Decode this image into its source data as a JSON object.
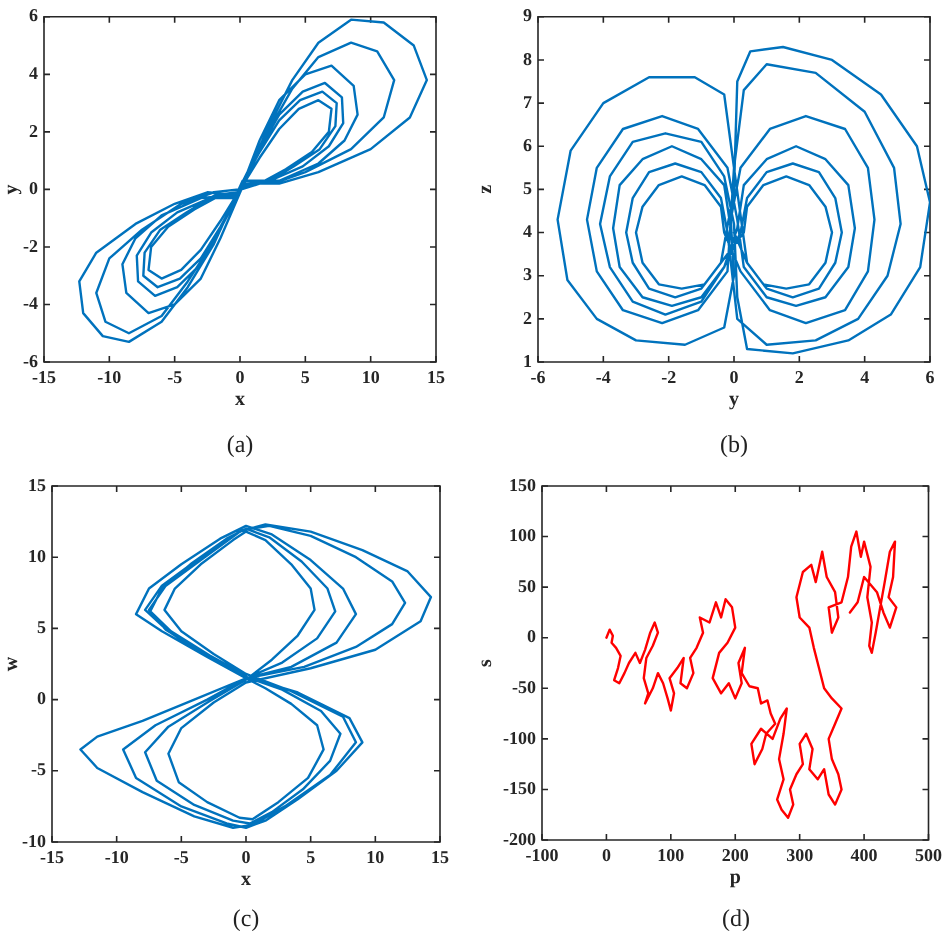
{
  "chart_data": [
    {
      "type": "line",
      "xlabel": "x",
      "ylabel": "y",
      "annotations": [
        "(a)"
      ],
      "color": "#0072bd",
      "grid": false,
      "legend": false,
      "marker": "none",
      "xlim": [
        -15,
        15
      ],
      "xticks": [
        -15,
        -10,
        -5,
        0,
        5,
        10,
        15
      ],
      "ylim": [
        -6,
        6
      ],
      "yticks": [
        -6,
        -4,
        -2,
        0,
        2,
        4,
        6
      ],
      "x": [
        0,
        1.5,
        3,
        4.8,
        6.5,
        7.8,
        7.9,
        6.8,
        4.8,
        2.3,
        0.2,
        -1.5,
        -3,
        -4.6,
        -6.3,
        -7.4,
        -7.3,
        -6.1,
        -4.1,
        -1.9,
        -0.2,
        2,
        4,
        6,
        8.5,
        10.5,
        11.8,
        11,
        8.5,
        5,
        2.5,
        0.3,
        -1.5,
        -3,
        -5,
        -7,
        -8.7,
        -9,
        -8,
        -6,
        -3,
        -0.3,
        1.5,
        3,
        4.6,
        6.3,
        7.4,
        7.3,
        6.1,
        4.1,
        1.9,
        0.1,
        -2,
        -4,
        -6,
        -8.5,
        -10.5,
        -12,
        -12.3,
        -11,
        -8,
        -5,
        -2.5,
        -0.1,
        1.5,
        3,
        5,
        7,
        8.7,
        9,
        8,
        6,
        3,
        0.2,
        -1.5,
        -3,
        -4.8,
        -6.5,
        -7.8,
        -7.9,
        -6.8,
        -4.8,
        -2.3,
        -0.2,
        2,
        4,
        6,
        8.5,
        11,
        13.3,
        14.3,
        13,
        10,
        6,
        3,
        0.4,
        -1.5,
        -3,
        -4.5,
        -6,
        -7,
        -6.8,
        -5.5,
        -3.5,
        -1.5,
        -0.4,
        1.5,
        3,
        4.5,
        6,
        7,
        6.8,
        5.5,
        3.5,
        1.5,
        0.1,
        -2,
        -4,
        -6,
        -8.5,
        -10.3,
        -11,
        -10,
        -7.5,
        -4.5,
        -2,
        -0.1
      ],
      "values": [
        0,
        1.4,
        2.6,
        3.4,
        3.7,
        3.2,
        2.3,
        1.5,
        0.8,
        0.3,
        0.1,
        -1.3,
        -2.4,
        -3.1,
        -3.4,
        -3,
        -2.2,
        -1.4,
        -0.8,
        -0.2,
        -0.1,
        1.9,
        3.5,
        4.6,
        5.1,
        4.8,
        3.8,
        2.5,
        1.4,
        0.6,
        0.2,
        0.2,
        -1.7,
        -3.1,
        -4,
        -4.3,
        -3.6,
        -2.6,
        -1.7,
        -0.9,
        -0.3,
        -0.2,
        1.3,
        2.4,
        3.1,
        3.4,
        3,
        2.2,
        1.4,
        0.8,
        0.2,
        0.2,
        -1.9,
        -3.4,
        -4.6,
        -5.3,
        -5.1,
        -4.3,
        -3.2,
        -2.2,
        -1.2,
        -0.5,
        -0.1,
        -0.2,
        1.7,
        3.1,
        4,
        4.3,
        3.6,
        2.6,
        1.7,
        0.9,
        0.3,
        0.3,
        -1.4,
        -2.6,
        -3.4,
        -3.7,
        -3.2,
        -2.3,
        -1.5,
        -0.8,
        -0.3,
        -0.3,
        2,
        3.8,
        5.1,
        5.9,
        5.8,
        5,
        3.8,
        2.5,
        1.4,
        0.6,
        0.2,
        0.3,
        -1.1,
        -2.1,
        -2.8,
        -3.1,
        -2.8,
        -2,
        -1.3,
        -0.7,
        -0.2,
        -0.3,
        1.1,
        2.1,
        2.8,
        3.1,
        2.8,
        2,
        1.3,
        0.7,
        0.2,
        0,
        -1.8,
        -3.2,
        -4.4,
        -5,
        -4.6,
        -3.6,
        -2.4,
        -1.4,
        -0.5,
        -0.1,
        0
      ]
    },
    {
      "type": "line",
      "xlabel": "y",
      "ylabel": "z",
      "annotations": [
        "(b)"
      ],
      "color": "#0072bd",
      "grid": false,
      "legend": false,
      "marker": "none",
      "xlim": [
        -6,
        6
      ],
      "xticks": [
        -6,
        -4,
        -2,
        0,
        2,
        4,
        6
      ],
      "ylim": [
        1,
        9
      ],
      "yticks": [
        1,
        2,
        3,
        4,
        5,
        6,
        7,
        8,
        9
      ],
      "x": [
        -0.1,
        -0.3,
        -1,
        -1.9,
        -2.8,
        -3.5,
        -3.7,
        -3.5,
        -2.8,
        -1.9,
        -1,
        -0.3,
        0.2,
        0.4,
        1,
        1.8,
        2.6,
        3.1,
        3.3,
        3.1,
        2.6,
        1.8,
        1,
        0.4,
        0,
        -0.3,
        -1.2,
        -2.6,
        -4,
        -5,
        -5.4,
        -5.1,
        -4.2,
        -3,
        -1.5,
        -0.3,
        0,
        -0.1,
        0.2,
        1.1,
        2.2,
        3.4,
        4.1,
        4.3,
        4.1,
        3.4,
        2.2,
        1.1,
        0.2,
        -0.3,
        -0.4,
        -0.9,
        -1.6,
        -2.3,
        -2.8,
        -3,
        -2.8,
        -2.3,
        -1.6,
        -0.9,
        -0.4,
        0,
        0.1,
        0.5,
        1.5,
        3,
        4.5,
        5.6,
        6,
        5.7,
        4.8,
        3.5,
        1.8,
        0.4,
        0.1,
        0,
        -0.3,
        -1,
        -2.1,
        -3.1,
        -3.8,
        -4.1,
        -3.8,
        -3.1,
        -2.1,
        -1,
        -0.3,
        0.1,
        0.3,
        1,
        1.9,
        2.8,
        3.5,
        3.7,
        3.5,
        2.8,
        1.9,
        1,
        0.3,
        0.1,
        -0.2,
        -1.1,
        -2.2,
        -3.4,
        -4.2,
        -4.5,
        -4.2,
        -3.4,
        -2.2,
        -1.1,
        -0.2,
        0,
        0.3,
        1,
        2.5,
        4,
        4.9,
        5.1,
        4.7,
        3.8,
        2.5,
        1,
        0.1,
        -0.2,
        -0.4,
        -1,
        -1.8,
        -2.6,
        -3.1,
        -3.3,
        -3.1,
        -2.6,
        -1.8,
        -1,
        -0.4,
        0.3,
        0.4,
        0.9,
        1.6,
        2.3,
        2.8,
        3,
        2.8,
        2.3,
        1.6,
        0.9,
        0.4,
        0
      ],
      "values": [
        4.1,
        5.1,
        5.7,
        6,
        5.7,
        5.1,
        4.1,
        3.2,
        2.5,
        2.3,
        2.5,
        3.2,
        4,
        4.8,
        5.4,
        5.6,
        5.4,
        4.8,
        4,
        3.3,
        2.7,
        2.5,
        2.7,
        3.3,
        5.5,
        7.2,
        7.6,
        7.6,
        7,
        5.9,
        4.3,
        2.9,
        2,
        1.5,
        1.4,
        1.8,
        3,
        4.3,
        5.5,
        6.4,
        6.7,
        6.4,
        5.5,
        4.3,
        3.1,
        2.2,
        1.9,
        2.2,
        3.1,
        4,
        4.6,
        5.1,
        5.3,
        5.1,
        4.6,
        4,
        3.3,
        2.8,
        2.7,
        2.8,
        3.3,
        5,
        7.5,
        8.2,
        8.3,
        8,
        7.2,
        6,
        4.7,
        3.2,
        2.1,
        1.5,
        1.2,
        1.3,
        2.5,
        4.2,
        5.3,
        6.1,
        6.3,
        6.1,
        5.3,
        4.2,
        3.2,
        2.4,
        2.1,
        2.4,
        3.2,
        4.1,
        5.1,
        5.7,
        6,
        5.7,
        5.1,
        4.1,
        3.2,
        2.5,
        2.3,
        2.5,
        3.2,
        4.3,
        5.5,
        6.4,
        6.7,
        6.4,
        5.5,
        4.3,
        3.1,
        2.2,
        1.9,
        2.2,
        3.1,
        5.5,
        7.3,
        7.9,
        7.7,
        6.8,
        5.5,
        4.2,
        3,
        2,
        1.5,
        1.4,
        2,
        4,
        4.8,
        5.4,
        5.6,
        5.4,
        4.8,
        4,
        3.3,
        2.7,
        2.5,
        2.7,
        3.3,
        4,
        4.6,
        5.1,
        5.3,
        5.1,
        4.6,
        4,
        3.3,
        2.8,
        2.7,
        2.8,
        3.3,
        4
      ]
    },
    {
      "type": "line",
      "xlabel": "x",
      "ylabel": "w",
      "annotations": [
        "(c)"
      ],
      "color": "#0072bd",
      "grid": false,
      "legend": false,
      "marker": "none",
      "xlim": [
        -15,
        15
      ],
      "xticks": [
        -15,
        -10,
        -5,
        0,
        5,
        10,
        15
      ],
      "ylim": [
        -10,
        15
      ],
      "yticks": [
        -10,
        -5,
        0,
        5,
        10,
        15
      ],
      "x": [
        0,
        -2.8,
        -5.8,
        -7.4,
        -6.5,
        -4.3,
        -1.5,
        0,
        1.8,
        4.3,
        6.3,
        6.9,
        5.5,
        2.8,
        0,
        -3,
        -7,
        -9.5,
        -8.5,
        -5,
        -1.5,
        0,
        1.5,
        4,
        7,
        9,
        8,
        4,
        0,
        -3,
        -6,
        -7.8,
        -6.5,
        -3.5,
        -0.5,
        1.5,
        5,
        9,
        12.5,
        14.3,
        13.5,
        10,
        5,
        0,
        -2.5,
        -5,
        -6,
        -5.2,
        -3,
        -0.5,
        0.5,
        2.5,
        4.8,
        6,
        5.5,
        3.5,
        1.5,
        0,
        -3,
        -6.5,
        -8.5,
        -7.5,
        -5,
        -2,
        0,
        2,
        5,
        7.5,
        8.5,
        7,
        3.5,
        0,
        -4,
        -8,
        -11.5,
        -12.8,
        -11.5,
        -8,
        -4,
        -1,
        0.5,
        3,
        6.5,
        8.5,
        7.5,
        3.5,
        0,
        -2.5,
        -5,
        -6.3,
        -5.5,
        -3.5,
        -1,
        0,
        1.5,
        3.5,
        5,
        5.3,
        4,
        2,
        0,
        -2.8,
        -6,
        -7.8,
        -6.9,
        -4,
        -1,
        0.3,
        2,
        4.4,
        6.5,
        7.3,
        5.8,
        2.8,
        0,
        -3,
        -6.2,
        -7.5,
        -6.2,
        -3.2,
        -0.3,
        1.8,
        5,
        8.5,
        11.3,
        12.3,
        11.3,
        8.5,
        4.5,
        0
      ],
      "values": [
        1.7,
        3.1,
        4.8,
        6.2,
        7.8,
        9.5,
        11.3,
        12,
        11.4,
        9.7,
        7.8,
        6.2,
        4.3,
        2.6,
        1.5,
        0,
        -1.8,
        -3.5,
        -5.5,
        -7.5,
        -8.7,
        -9,
        -8.5,
        -7,
        -5,
        -3,
        -1.3,
        0.5,
        1.6,
        3,
        4.8,
        6.3,
        8,
        10,
        11.8,
        12.3,
        11.8,
        10.5,
        9,
        7.2,
        5.5,
        3.5,
        2.2,
        1.2,
        -0.2,
        -2,
        -3.8,
        -5.8,
        -7.2,
        -8.3,
        -8.4,
        -7.2,
        -5.5,
        -3.5,
        -1.8,
        -0.3,
        0.8,
        1.5,
        3,
        4.8,
        6,
        7.8,
        9.5,
        11.3,
        12.2,
        11.6,
        9.8,
        7.8,
        6,
        4,
        2.3,
        1.5,
        0,
        -1.5,
        -2.6,
        -3.5,
        -4.8,
        -6.5,
        -8.2,
        -9,
        -8.8,
        -7.5,
        -5.3,
        -3,
        -1.2,
        0.6,
        1.8,
        3.2,
        4.8,
        6.3,
        7.8,
        9.5,
        11.2,
        11.8,
        11.2,
        9.5,
        7.8,
        6.3,
        4.5,
        2.8,
        1.4,
        -0.1,
        -1.9,
        -3.7,
        -5.7,
        -7.4,
        -8.5,
        -8.7,
        -7.9,
        -6.3,
        -4.3,
        -2.4,
        -0.8,
        0.7,
        1.6,
        3.1,
        4.9,
        6.3,
        8,
        10,
        11.9,
        12.2,
        11.5,
        10,
        8.3,
        6.8,
        5.3,
        3.7,
        2.3,
        1.5
      ]
    },
    {
      "type": "line",
      "xlabel": "p",
      "ylabel": "s",
      "annotations": [
        "(d)"
      ],
      "color": "#ff0000",
      "grid": false,
      "legend": false,
      "marker": "none",
      "xlim": [
        -100,
        500
      ],
      "xticks": [
        -100,
        0,
        100,
        200,
        300,
        400,
        500
      ],
      "ylim": [
        -200,
        150
      ],
      "yticks": [
        -200,
        -150,
        -100,
        -50,
        0,
        50,
        100,
        150
      ],
      "x": [
        0,
        5,
        10,
        8,
        15,
        22,
        18,
        12,
        20,
        28,
        35,
        45,
        52,
        60,
        68,
        75,
        80,
        72,
        62,
        58,
        65,
        60,
        72,
        80,
        88,
        95,
        100,
        105,
        98,
        110,
        120,
        115,
        125,
        135,
        130,
        140,
        150,
        145,
        160,
        170,
        178,
        185,
        195,
        200,
        188,
        175,
        165,
        178,
        190,
        200,
        210,
        205,
        215,
        210,
        222,
        235,
        240,
        250,
        255,
        262,
        248,
        242,
        230,
        225,
        240,
        258,
        270,
        280,
        275,
        268,
        275,
        265,
        272,
        282,
        290,
        285,
        295,
        305,
        300,
        310,
        320,
        315,
        328,
        338,
        345,
        355,
        365,
        360,
        350,
        345,
        355,
        365,
        350,
        338,
        330,
        322,
        315,
        300,
        295,
        305,
        318,
        325,
        335,
        342,
        355,
        360,
        350,
        345,
        365,
        375,
        380,
        388,
        395,
        400,
        410,
        405,
        412,
        408,
        412,
        418,
        425,
        432,
        440,
        448,
        445,
        438,
        450,
        440,
        430,
        420,
        400,
        390,
        378
      ],
      "values": [
        0,
        8,
        2,
        -5,
        -10,
        -18,
        -30,
        -42,
        -45,
        -35,
        -25,
        -15,
        -25,
        -12,
        5,
        15,
        5,
        -8,
        -20,
        -40,
        -55,
        -65,
        -50,
        -35,
        -45,
        -60,
        -72,
        -55,
        -40,
        -30,
        -20,
        -45,
        -50,
        -35,
        -20,
        -10,
        5,
        20,
        15,
        35,
        20,
        38,
        30,
        10,
        -5,
        -15,
        -40,
        -55,
        -45,
        -60,
        -45,
        -25,
        -10,
        -35,
        -48,
        -50,
        -65,
        -62,
        -75,
        -85,
        -95,
        -110,
        -125,
        -105,
        -90,
        -100,
        -80,
        -70,
        -95,
        -120,
        -140,
        -160,
        -170,
        -178,
        -165,
        -150,
        -135,
        -125,
        -105,
        -95,
        -110,
        -130,
        -140,
        -130,
        -155,
        -165,
        -150,
        -135,
        -120,
        -100,
        -85,
        -70,
        -60,
        -50,
        -30,
        -10,
        10,
        20,
        40,
        65,
        72,
        55,
        85,
        60,
        45,
        20,
        5,
        30,
        35,
        60,
        90,
        105,
        80,
        95,
        70,
        40,
        15,
        -8,
        -15,
        5,
        30,
        55,
        85,
        95,
        60,
        40,
        30,
        10,
        25,
        45,
        60,
        35,
        25
      ]
    }
  ]
}
